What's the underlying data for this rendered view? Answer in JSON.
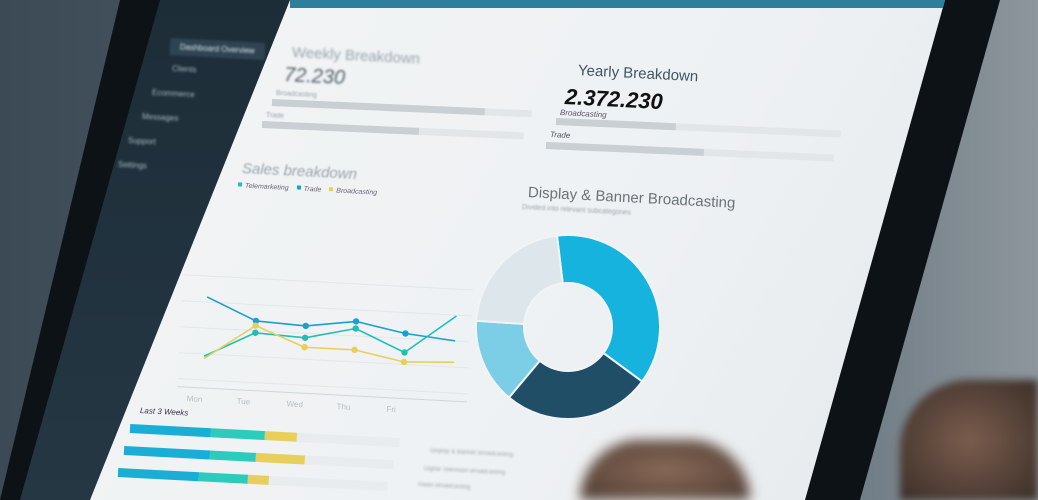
{
  "sidebar": {
    "items": [
      {
        "label": "Dashboard Overview",
        "active": true
      },
      {
        "label": "Clients"
      },
      {
        "label": "Ecommerce"
      },
      {
        "label": "Messages"
      },
      {
        "label": "Support"
      },
      {
        "label": "Settings"
      }
    ]
  },
  "weekly": {
    "title": "Weekly Breakdown",
    "value": "72.230",
    "bars": [
      {
        "label": "Broadcasting",
        "fill": 0.82
      },
      {
        "label": "Trade",
        "fill": 0.6
      }
    ]
  },
  "yearly": {
    "title": "Yearly Breakdown",
    "value": "2.372.230",
    "bars": [
      {
        "label": "Broadcasting",
        "fill": 0.45
      },
      {
        "label": "Trade",
        "fill": 0.55
      }
    ]
  },
  "sales": {
    "title": "Sales breakdown",
    "legend": [
      {
        "label": "Telemarketing",
        "color": "#1fbfb3"
      },
      {
        "label": "Trade",
        "color": "#1a9fd0"
      },
      {
        "label": "Broadcasting",
        "color": "#e8cf5c"
      }
    ]
  },
  "chart_data": {
    "type": "line",
    "categories": [
      "Mon",
      "Tue",
      "Wed",
      "Thu",
      "Fri"
    ],
    "x": [
      0,
      1,
      2,
      3,
      4,
      5
    ],
    "series": [
      {
        "name": "Trade",
        "color": "#1a9fd0",
        "values": [
          90,
          72,
          70,
          76,
          68,
          64
        ]
      },
      {
        "name": "Telemarketing",
        "color": "#1fbfb3",
        "values": [
          40,
          62,
          60,
          70,
          52,
          85
        ]
      },
      {
        "name": "Broadcasting",
        "color": "#e8cf5c",
        "values": [
          38,
          68,
          52,
          52,
          44,
          46
        ]
      }
    ],
    "grid": true
  },
  "weeks": {
    "title": "Last 3 Weeks",
    "rows": [
      [
        0.3,
        0.2,
        0.12
      ],
      [
        0.32,
        0.17,
        0.18
      ],
      [
        0.3,
        0.18,
        0.08
      ]
    ],
    "colors": [
      "#1aaed6",
      "#2ccbbd",
      "#e8cf5c"
    ]
  },
  "display": {
    "title": "Display & Banner Broadcasting",
    "subtitle": "Divided into relevant subcategories",
    "slices": [
      {
        "value": 37,
        "color": "#17b3df"
      },
      {
        "value": 26,
        "color": "#1f4e66"
      },
      {
        "value": 15,
        "color": "#7ccde6"
      },
      {
        "value": 22,
        "color": "#dde6ea"
      }
    ],
    "legend": [
      "Display & Banner Broadcasting",
      "Digital Television Broadcasting",
      "Radio Broadcasting"
    ]
  }
}
